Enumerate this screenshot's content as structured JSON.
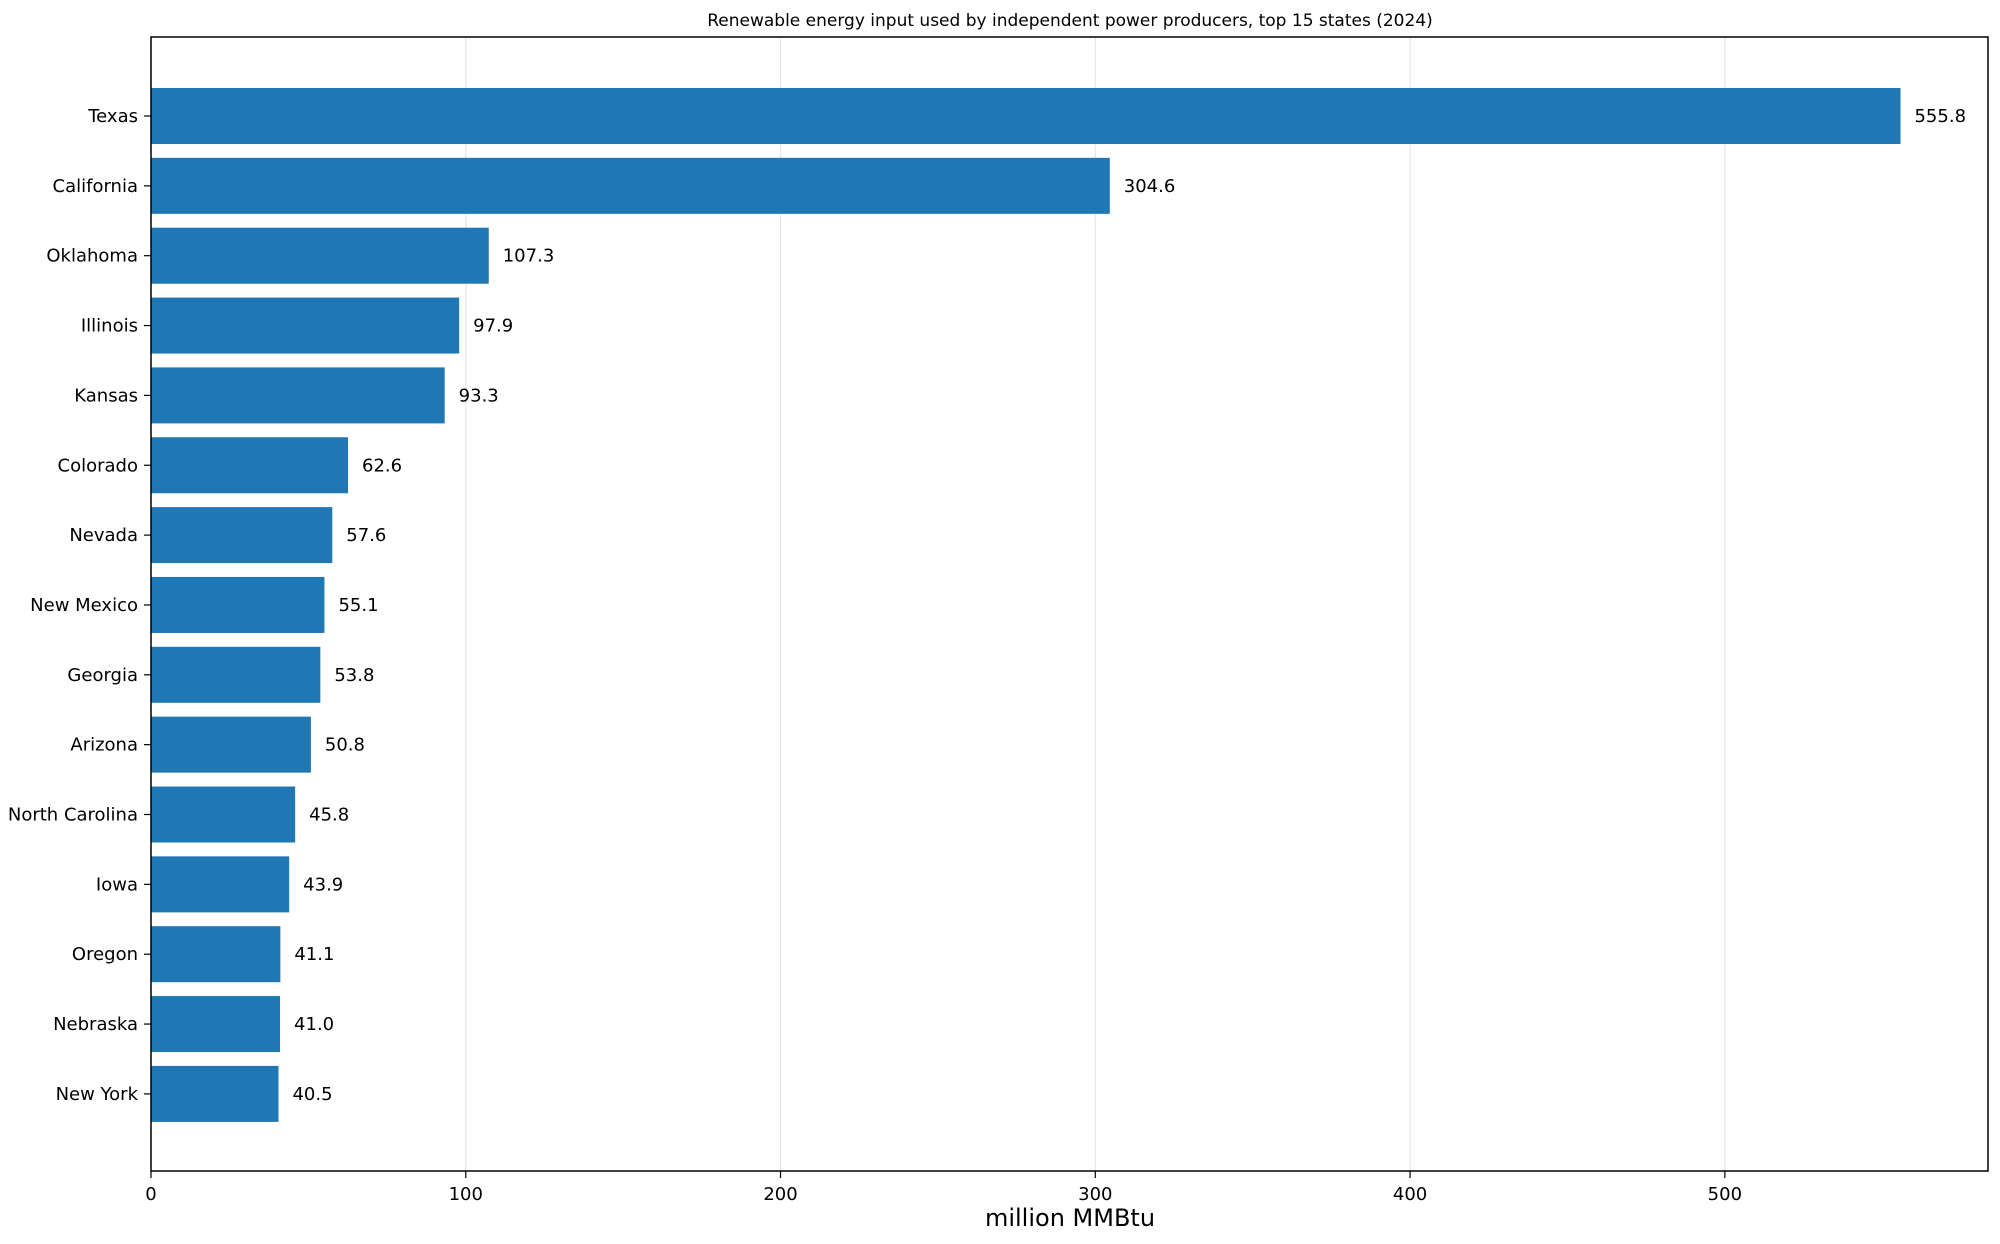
{
  "chart_data": {
    "type": "bar",
    "orientation": "horizontal",
    "title": "Renewable energy input used by independent power producers, top 15 states (2024)",
    "xlabel": "million MMBtu",
    "ylabel": "",
    "xlim": [
      0,
      583.6
    ],
    "xticks": [
      0,
      100,
      200,
      300,
      400,
      500
    ],
    "grid": "vertical",
    "bar_color": "#1f77b4",
    "categories": [
      "Texas",
      "California",
      "Oklahoma",
      "Illinois",
      "Kansas",
      "Colorado",
      "Nevada",
      "New Mexico",
      "Georgia",
      "Arizona",
      "North Carolina",
      "Iowa",
      "Oregon",
      "Nebraska",
      "New York"
    ],
    "values": [
      555.8,
      304.6,
      107.3,
      97.9,
      93.3,
      62.6,
      57.6,
      55.1,
      53.8,
      50.8,
      45.8,
      43.9,
      41.1,
      41.0,
      40.5
    ],
    "value_labels": [
      "555.8",
      "304.6",
      "107.3",
      "97.9",
      "93.3",
      "62.6",
      "57.6",
      "55.1",
      "53.8",
      "50.8",
      "45.8",
      "43.9",
      "41.1",
      "41.0",
      "40.5"
    ]
  }
}
